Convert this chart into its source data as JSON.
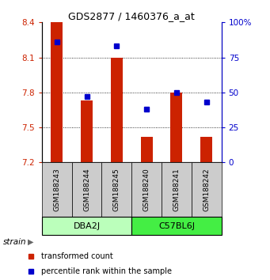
{
  "title": "GDS2877 / 1460376_a_at",
  "samples": [
    "GSM188243",
    "GSM188244",
    "GSM188245",
    "GSM188240",
    "GSM188241",
    "GSM188242"
  ],
  "red_values": [
    8.4,
    7.73,
    8.1,
    7.42,
    7.8,
    7.42
  ],
  "blue_values": [
    86,
    47,
    83,
    38,
    50,
    43
  ],
  "ymin": 7.2,
  "ymax": 8.4,
  "yticks": [
    7.2,
    7.5,
    7.8,
    8.1,
    8.4
  ],
  "right_yticks": [
    0,
    25,
    50,
    75,
    100
  ],
  "bar_color": "#cc2200",
  "dot_color": "#0000cc",
  "bar_bottom": 7.2,
  "legend_red": "transformed count",
  "legend_blue": "percentile rank within the sample",
  "title_fontsize": 9,
  "axis_fontsize": 7.5,
  "sample_fontsize": 6.5,
  "group_fontsize": 8,
  "legend_fontsize": 7,
  "bar_width": 0.4,
  "dot_size": 4,
  "grid_lines": [
    7.5,
    7.8,
    8.1
  ],
  "dba2j_color": "#ccffcc",
  "c57bl6j_color": "#44dd44",
  "sample_bg_color": "#cccccc",
  "groups_info": [
    {
      "label": "DBA2J",
      "start": 0,
      "end": 2,
      "color": "#bbffbb"
    },
    {
      "label": "C57BL6J",
      "start": 3,
      "end": 5,
      "color": "#44ee44"
    }
  ]
}
